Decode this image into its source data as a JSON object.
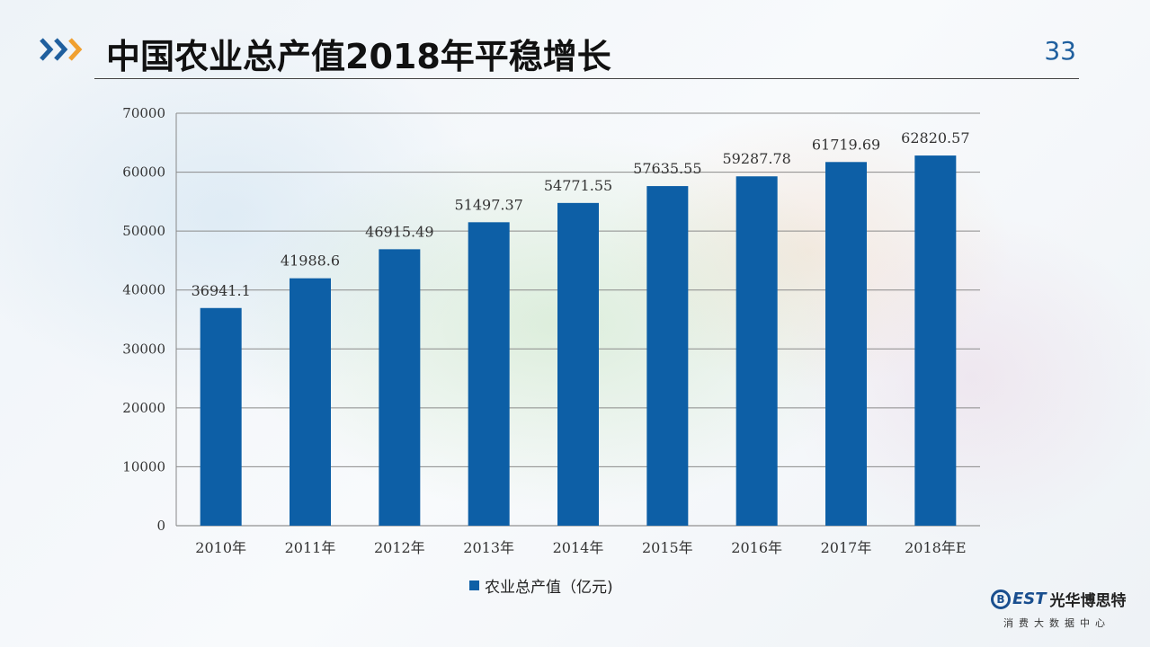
{
  "header": {
    "title": "中国农业总产值2018年平稳增长",
    "page_number": "33"
  },
  "brand": {
    "logo_letter": "B",
    "logo_est": "EST",
    "logo_name": "光华博思特",
    "logo_subtitle": "消费大数据中心",
    "accent_blue": "#1f5f9e",
    "accent_orange": "#f0a030"
  },
  "chart_data": {
    "type": "bar",
    "categories": [
      "2010年",
      "2011年",
      "2012年",
      "2013年",
      "2014年",
      "2015年",
      "2016年",
      "2017年",
      "2018年E"
    ],
    "series": [
      {
        "name": "农业总产值（亿元)",
        "values": [
          36941.1,
          41988.6,
          46915.49,
          51497.37,
          54771.55,
          57635.55,
          59287.78,
          61719.69,
          62820.57
        ],
        "labels": [
          "36941.1",
          "41988.6",
          "46915.49",
          "51497.37",
          "54771.55",
          "57635.55",
          "59287.78",
          "61719.69",
          "62820.57"
        ],
        "color": "#0d5fa6"
      }
    ],
    "yticks": [
      "0",
      "10000",
      "20000",
      "30000",
      "40000",
      "50000",
      "60000",
      "70000"
    ],
    "ylim": [
      0,
      70000
    ],
    "grid": true,
    "legend_position": "bottom"
  }
}
